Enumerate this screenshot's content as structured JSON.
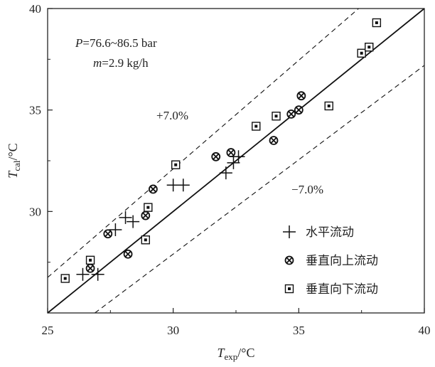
{
  "chart_data": {
    "type": "scatter",
    "title": "",
    "xlabel": {
      "main": "T",
      "sub": "exp",
      "unit": "/°C"
    },
    "ylabel": {
      "main": "T",
      "sub": "cal",
      "unit": "/°C"
    },
    "xlim": [
      25,
      40
    ],
    "ylim": [
      25,
      40
    ],
    "xticks": [
      25,
      30,
      35,
      40
    ],
    "yticks": [
      30,
      35,
      40
    ],
    "conditions": {
      "p_sym": "P",
      "p_text": "=76.6~86.5 bar",
      "m_sym": "m",
      "m_text": "=2.9 kg/h"
    },
    "reference_lines": [
      {
        "label": "",
        "slope": 1.0,
        "style": "solid"
      },
      {
        "label": "+7.0%",
        "slope": 1.07,
        "style": "dashed"
      },
      {
        "label": "−7.0%",
        "slope": 0.93,
        "style": "dashed"
      }
    ],
    "legend_position": "bottom-right",
    "series": [
      {
        "name": "水平流动",
        "marker": "plus",
        "points": [
          [
            26.4,
            26.9
          ],
          [
            27.0,
            26.9
          ],
          [
            27.7,
            29.1
          ],
          [
            28.1,
            29.7
          ],
          [
            28.4,
            29.5
          ],
          [
            30.0,
            31.3
          ],
          [
            30.4,
            31.3
          ],
          [
            32.1,
            31.9
          ],
          [
            32.4,
            32.4
          ],
          [
            32.6,
            32.7
          ]
        ]
      },
      {
        "name": "垂直向上流动",
        "marker": "circle-x",
        "points": [
          [
            26.7,
            27.2
          ],
          [
            27.4,
            28.9
          ],
          [
            28.2,
            27.9
          ],
          [
            28.9,
            29.8
          ],
          [
            29.2,
            31.1
          ],
          [
            31.7,
            32.7
          ],
          [
            32.3,
            32.9
          ],
          [
            34.0,
            33.5
          ],
          [
            34.7,
            34.8
          ],
          [
            35.0,
            35.0
          ],
          [
            35.1,
            35.7
          ]
        ]
      },
      {
        "name": "垂直向下流动",
        "marker": "dotted-square",
        "points": [
          [
            25.7,
            26.7
          ],
          [
            26.7,
            27.6
          ],
          [
            28.9,
            28.6
          ],
          [
            29.0,
            30.2
          ],
          [
            30.1,
            32.3
          ],
          [
            33.3,
            34.2
          ],
          [
            34.1,
            34.7
          ],
          [
            36.2,
            35.2
          ],
          [
            37.5,
            37.8
          ],
          [
            37.8,
            38.1
          ],
          [
            38.1,
            39.3
          ]
        ]
      }
    ]
  }
}
